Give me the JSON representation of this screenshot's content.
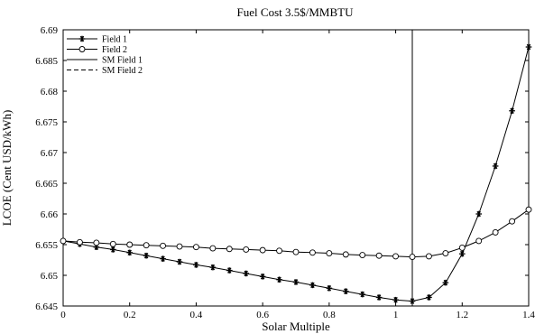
{
  "chart_data": {
    "type": "line",
    "title": "Fuel Cost 3.5$/MMBTU",
    "xlabel": "Solar Multiple",
    "ylabel": "LCOE (Cent USD/kWh)",
    "xlim": [
      0,
      1.4
    ],
    "ylim": [
      6.645,
      6.69
    ],
    "xticks": [
      "0",
      "0.2",
      "0.4",
      "0.6",
      "0.8",
      "1",
      "1.2",
      "1.4"
    ],
    "yticks": [
      "6.645",
      "6.65",
      "6.655",
      "6.66",
      "6.665",
      "6.67",
      "6.675",
      "6.68",
      "6.685",
      "6.69"
    ],
    "grid": false,
    "legend_position": "top-left",
    "x": [
      0,
      0.05,
      0.1,
      0.15,
      0.2,
      0.25,
      0.3,
      0.35,
      0.4,
      0.45,
      0.5,
      0.55,
      0.6,
      0.65,
      0.7,
      0.75,
      0.8,
      0.85,
      0.9,
      0.95,
      1.0,
      1.05,
      1.1,
      1.15,
      1.2,
      1.25,
      1.3,
      1.35,
      1.4
    ],
    "series": [
      {
        "name": "Field 1",
        "marker": "asterisk",
        "values": [
          6.6556,
          6.6551,
          6.6546,
          6.6542,
          6.6537,
          6.6532,
          6.6527,
          6.6522,
          6.6517,
          6.6513,
          6.6508,
          6.6503,
          6.6498,
          6.6493,
          6.6489,
          6.6484,
          6.6479,
          6.6474,
          6.6469,
          6.6464,
          6.646,
          6.6458,
          6.6464,
          6.6488,
          6.6535,
          6.66,
          6.6678,
          6.6768,
          6.6872
        ]
      },
      {
        "name": "Field 2",
        "marker": "circle",
        "values": [
          6.6556,
          6.6554,
          6.6553,
          6.6551,
          6.655,
          6.6549,
          6.6548,
          6.6547,
          6.6546,
          6.6544,
          6.6543,
          6.6542,
          6.6541,
          6.654,
          6.6538,
          6.6537,
          6.6536,
          6.6534,
          6.6533,
          6.6532,
          6.6531,
          6.653,
          6.6531,
          6.6536,
          6.6545,
          6.6556,
          6.657,
          6.6588,
          6.6607
        ]
      }
    ],
    "vlines": [
      {
        "name": "SM Field 1",
        "style": "solid",
        "x": 1.05
      },
      {
        "name": "SM Field 2",
        "style": "dashed",
        "x": 1.05
      }
    ]
  }
}
